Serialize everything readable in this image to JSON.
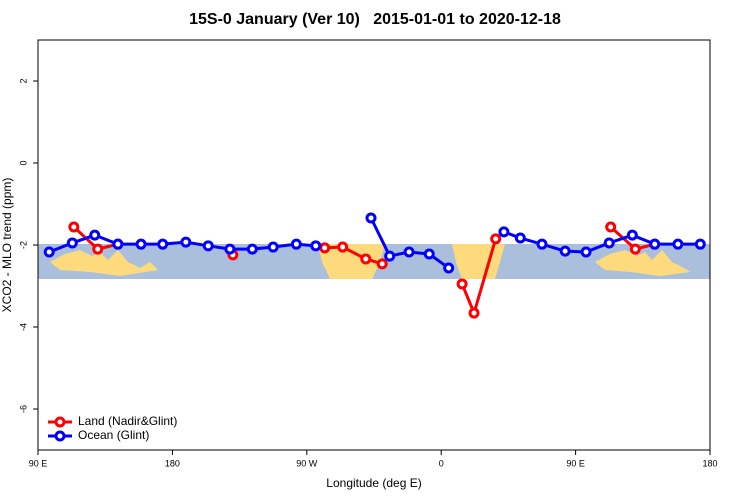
{
  "chart_data": {
    "type": "line",
    "title": "15S-0 January (Ver 10)   2015-01-01 to 2020-12-18",
    "x_label": "Longitude (deg E)",
    "y_label": "XCO2 - MLO trend (ppm)",
    "xlim": [
      90,
      540
    ],
    "ylim": [
      -7,
      3
    ],
    "xticks": [
      {
        "value": 90,
        "label": "90 E"
      },
      180,
      {
        "value": 270,
        "label": "90 W"
      },
      {
        "value": 360,
        "label": "0"
      },
      {
        "value": 450,
        "label": "90 E"
      },
      {
        "value": 540,
        "label": "180"
      }
    ],
    "yticks": [
      -6,
      -4,
      -2,
      0,
      2
    ],
    "legend": "bottom-left",
    "series": [
      {
        "name": "Land (Nadir&Glint)",
        "color": "#ff0000",
        "x": [
          114,
          130,
          143.5,
          null,
          220.5,
          null,
          282,
          294,
          309.5,
          320.5,
          null,
          374,
          382,
          396.5,
          null,
          473.5,
          490,
          503
        ],
        "values": [
          -1.56,
          -2.1,
          -1.98,
          null,
          -2.24,
          null,
          -2.07,
          -2.05,
          -2.34,
          -2.46,
          null,
          -2.95,
          -3.66,
          -1.85,
          null,
          -1.56,
          -2.1,
          -1.98
        ]
      },
      {
        "name": "Ocean (Glint)",
        "color": "#0000ff",
        "x": [
          97.5,
          113,
          128,
          143.5,
          159,
          173.5,
          189,
          204,
          218.5,
          233.5,
          247.5,
          263,
          276,
          null,
          313,
          325.5,
          338.5,
          352,
          365,
          null,
          402,
          413,
          427.5,
          443,
          457,
          472.5,
          488,
          503,
          518.5,
          533.5
        ],
        "values": [
          -2.17,
          -1.95,
          -1.76,
          -1.98,
          -1.98,
          -1.98,
          -1.93,
          -2.02,
          -2.1,
          -2.1,
          -2.05,
          -1.98,
          -2.02,
          null,
          -1.34,
          -2.27,
          -2.17,
          -2.22,
          -2.56,
          null,
          -1.68,
          -1.83,
          -1.98,
          -2.15,
          -2.17,
          -1.95,
          -1.76,
          -1.98,
          -1.98,
          -1.98
        ]
      }
    ]
  }
}
